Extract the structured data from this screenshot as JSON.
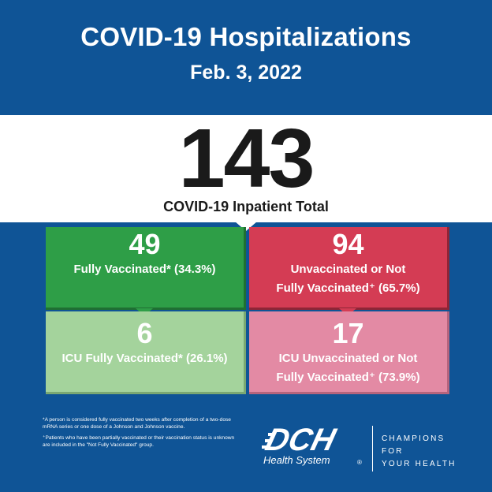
{
  "header": {
    "title": "COVID-19 Hospitalizations",
    "date": "Feb. 3, 2022"
  },
  "total": {
    "value": "143",
    "label": "COVID-19 Inpatient Total"
  },
  "tiles": [
    {
      "value": "49",
      "label_line1": "Fully Vaccinated* (34.3%)",
      "label_line2": "",
      "color": "#2e9e47"
    },
    {
      "value": "94",
      "label_line1": "Unvaccinated or Not",
      "label_line2": "Fully Vaccinated⁺ (65.7%)",
      "color": "#d43c54"
    },
    {
      "value": "6",
      "label_line1": "ICU Fully Vaccinated* (26.1%)",
      "label_line2": "",
      "color": "#a4d39c"
    },
    {
      "value": "17",
      "label_line1": "ICU Unvaccinated or Not",
      "label_line2": "Fully Vaccinated⁺ (73.9%)",
      "color": "#e38aa4"
    }
  ],
  "footnotes": [
    "*A person is considered fully vaccinated two weeks after completion of a two-dose mRNA series or one dose of a Johnson and Johnson vaccine.",
    "⁺Patients who have been partially vaccinated or their vaccination status is unknown are included in the \"Not Fully Vaccinated\" group."
  ],
  "brand": {
    "logo_text": "DCH",
    "logo_subtext": "Health System",
    "tagline_line1": "CHAMPIONS FOR",
    "tagline_line2": "YOUR HEALTH"
  },
  "colors": {
    "background": "#0f5496",
    "band": "#ffffff"
  }
}
